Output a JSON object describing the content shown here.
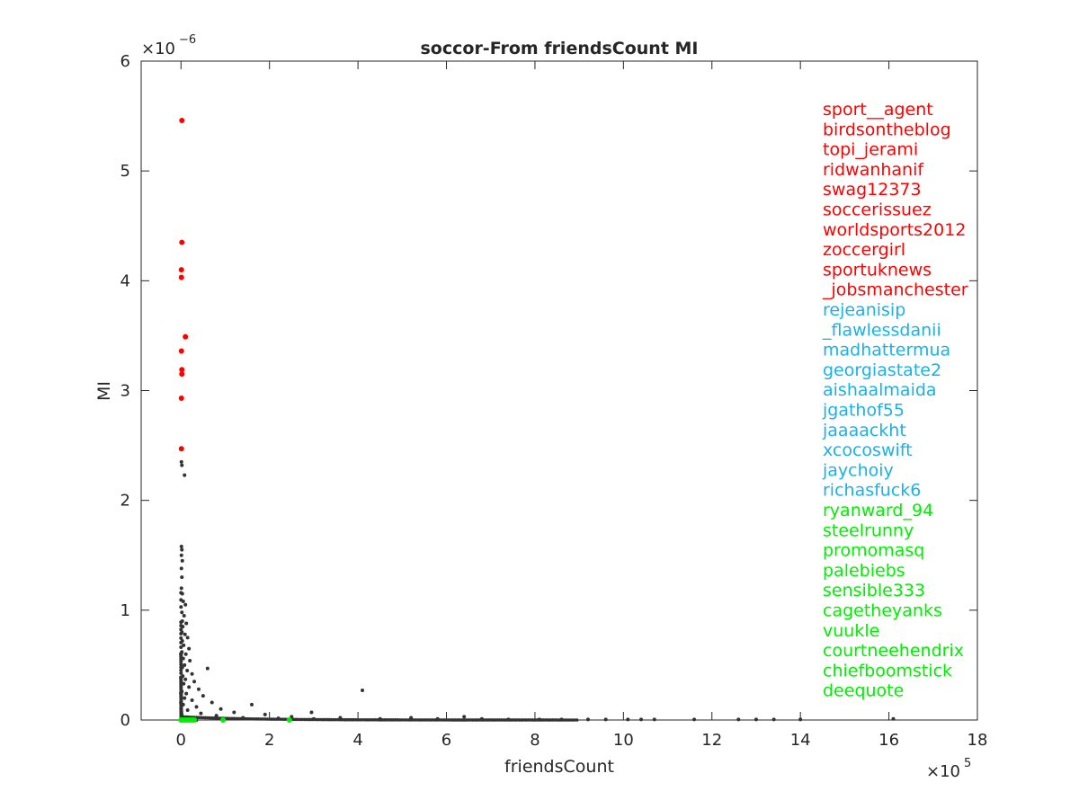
{
  "chart_data": {
    "type": "scatter",
    "title": "soccor-From friendsCount MI",
    "xlabel": "friendsCount",
    "ylabel": "MI",
    "xlim": [
      -0.9,
      18
    ],
    "ylim": [
      0,
      6
    ],
    "x_ticks": [
      0,
      2,
      4,
      6,
      8,
      10,
      12,
      14,
      16,
      18
    ],
    "y_ticks": [
      0,
      1,
      2,
      3,
      4,
      5,
      6
    ],
    "x_exponent": {
      "base": "×10",
      "power": "5"
    },
    "y_exponent": {
      "base": "×10",
      "power": "−6"
    },
    "units_note": "x values in units of 1e5, y values in units of 1e-6",
    "grid": false,
    "colors": {
      "top": "#ff0000",
      "middle": "#1ab2e6",
      "bottom": "#00ee00",
      "other": "#333333"
    },
    "series": [
      {
        "name": "top",
        "color": "#ff0000",
        "points": [
          [
            0.02,
            5.46
          ],
          [
            0.02,
            4.35
          ],
          [
            0.01,
            4.1
          ],
          [
            0.01,
            4.03
          ],
          [
            0.1,
            3.49
          ],
          [
            0.01,
            3.36
          ],
          [
            0.02,
            3.19
          ],
          [
            0.02,
            3.15
          ],
          [
            0.01,
            2.93
          ],
          [
            0.01,
            2.47
          ]
        ]
      },
      {
        "name": "bottom",
        "color": "#00ee00",
        "points": [
          [
            0.0,
            0.0
          ],
          [
            0.05,
            0.0
          ],
          [
            0.1,
            0.0
          ],
          [
            0.15,
            0.0
          ],
          [
            0.2,
            0.0
          ],
          [
            0.25,
            0.0
          ],
          [
            0.3,
            0.0
          ],
          [
            0.95,
            0.0
          ],
          [
            2.45,
            0.0
          ]
        ]
      },
      {
        "name": "other",
        "color": "#333333",
        "points": [
          [
            0.01,
            2.35
          ],
          [
            0.02,
            2.32
          ],
          [
            0.08,
            2.23
          ],
          [
            0.01,
            1.58
          ],
          [
            0.02,
            1.55
          ],
          [
            0.01,
            1.5
          ],
          [
            0.03,
            1.45
          ],
          [
            0.01,
            1.38
          ],
          [
            0.02,
            1.3
          ],
          [
            0.01,
            1.2
          ],
          [
            0.03,
            1.15
          ],
          [
            0.05,
            1.08
          ],
          [
            0.1,
            1.05
          ],
          [
            0.02,
            0.98
          ],
          [
            0.07,
            0.95
          ],
          [
            0.03,
            0.9
          ],
          [
            0.12,
            0.88
          ],
          [
            0.04,
            0.85
          ],
          [
            0.02,
            0.8
          ],
          [
            0.09,
            0.78
          ],
          [
            0.15,
            0.75
          ],
          [
            0.03,
            0.72
          ],
          [
            0.06,
            0.68
          ],
          [
            0.18,
            0.65
          ],
          [
            0.02,
            0.62
          ],
          [
            0.11,
            0.6
          ],
          [
            0.05,
            0.56
          ],
          [
            0.2,
            0.54
          ],
          [
            0.08,
            0.5
          ],
          [
            0.03,
            0.48
          ],
          [
            0.14,
            0.45
          ],
          [
            0.25,
            0.42
          ],
          [
            0.6,
            0.47
          ],
          [
            0.04,
            0.4
          ],
          [
            0.1,
            0.37
          ],
          [
            0.3,
            0.35
          ],
          [
            0.06,
            0.33
          ],
          [
            0.18,
            0.3
          ],
          [
            0.4,
            0.28
          ],
          [
            0.02,
            0.26
          ],
          [
            0.12,
            0.24
          ],
          [
            0.5,
            0.22
          ],
          [
            0.08,
            0.2
          ],
          [
            0.25,
            0.18
          ],
          [
            0.7,
            0.16
          ],
          [
            0.05,
            0.14
          ],
          [
            1.6,
            0.14
          ],
          [
            0.35,
            0.12
          ],
          [
            0.9,
            0.1
          ],
          [
            0.15,
            0.09
          ],
          [
            1.2,
            0.07
          ],
          [
            2.95,
            0.07
          ],
          [
            0.45,
            0.06
          ],
          [
            1.9,
            0.05
          ],
          [
            0.8,
            0.04
          ],
          [
            2.5,
            0.03
          ],
          [
            4.1,
            0.27
          ],
          [
            6.4,
            0.03
          ],
          [
            3.6,
            0.02
          ],
          [
            5.2,
            0.02
          ],
          [
            1.4,
            0.02
          ],
          [
            2.2,
            0.015
          ],
          [
            3.0,
            0.01
          ],
          [
            4.5,
            0.01
          ],
          [
            5.8,
            0.01
          ],
          [
            6.8,
            0.01
          ],
          [
            7.4,
            0.005
          ],
          [
            8.1,
            0.005
          ],
          [
            8.6,
            0.005
          ],
          [
            9.2,
            0.005
          ],
          [
            9.6,
            0.005
          ],
          [
            10.1,
            0.005
          ],
          [
            10.4,
            0.005
          ],
          [
            10.7,
            0.005
          ],
          [
            11.6,
            0.005
          ],
          [
            12.6,
            0.005
          ],
          [
            13.0,
            0.005
          ],
          [
            13.4,
            0.005
          ],
          [
            14.0,
            0.005
          ],
          [
            16.1,
            0.01
          ]
        ]
      }
    ],
    "labels": [
      {
        "text": "sport__agent",
        "group": "top"
      },
      {
        "text": "birdsontheblog",
        "group": "top"
      },
      {
        "text": "topi_jerami",
        "group": "top"
      },
      {
        "text": "ridwanhanif",
        "group": "top"
      },
      {
        "text": "swag12373",
        "group": "top"
      },
      {
        "text": "soccerissuez",
        "group": "top"
      },
      {
        "text": "worldsports2012",
        "group": "top"
      },
      {
        "text": "zoccergirl",
        "group": "top"
      },
      {
        "text": "sportuknews",
        "group": "top"
      },
      {
        "text": "_jobsmanchester",
        "group": "top"
      },
      {
        "text": "rejeanisip",
        "group": "middle"
      },
      {
        "text": "_flawlessdanii",
        "group": "middle"
      },
      {
        "text": "madhattermua",
        "group": "middle"
      },
      {
        "text": "georgiastate2",
        "group": "middle"
      },
      {
        "text": "aishaalmaida",
        "group": "middle"
      },
      {
        "text": "jgathof55",
        "group": "middle"
      },
      {
        "text": "jaaaackht",
        "group": "middle"
      },
      {
        "text": "xcocoswift",
        "group": "middle"
      },
      {
        "text": "jaychoiy",
        "group": "middle"
      },
      {
        "text": "richasfuck6",
        "group": "middle"
      },
      {
        "text": "ryanward_94",
        "group": "bottom"
      },
      {
        "text": "steelrunny",
        "group": "bottom"
      },
      {
        "text": "promomasq",
        "group": "bottom"
      },
      {
        "text": "palebiebs",
        "group": "bottom"
      },
      {
        "text": "sensible333",
        "group": "bottom"
      },
      {
        "text": "cagetheyanks",
        "group": "bottom"
      },
      {
        "text": "vuukle",
        "group": "bottom"
      },
      {
        "text": "courtneehendrix",
        "group": "bottom"
      },
      {
        "text": "chiefboomstick",
        "group": "bottom"
      },
      {
        "text": "deequote",
        "group": "bottom"
      }
    ]
  }
}
